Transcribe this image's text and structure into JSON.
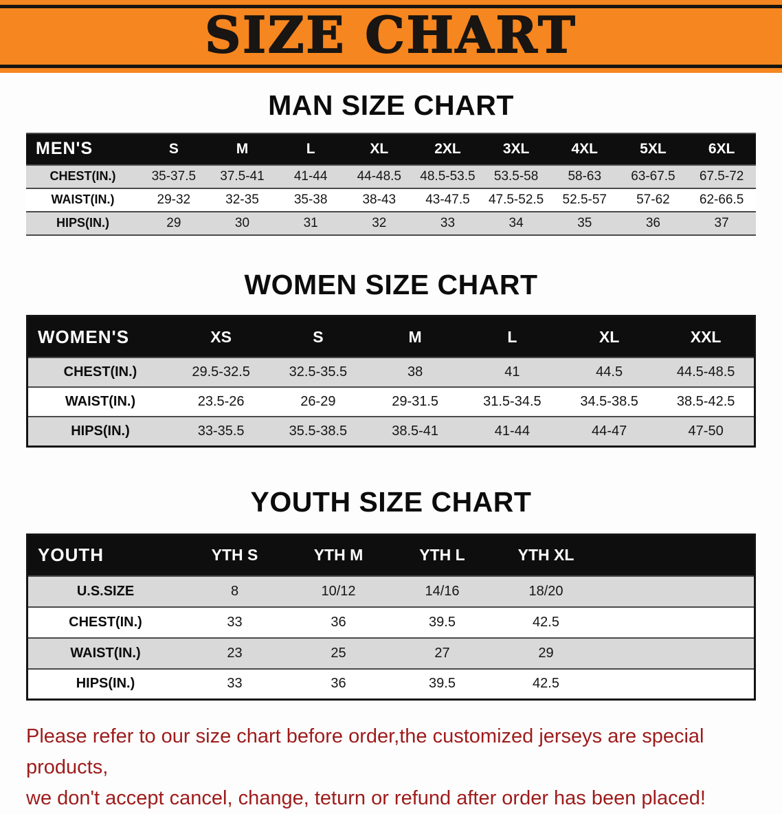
{
  "colors": {
    "banner_orange": "#f6861f",
    "header_black": "#0e0e0e",
    "stripe_gray": "#d9d9d9",
    "notice_red": "#9e1b1b"
  },
  "banner": {
    "title": "SIZE CHART"
  },
  "men": {
    "heading": "MAN SIZE CHART",
    "table": {
      "corner": "MEN'S",
      "columns": [
        "S",
        "M",
        "L",
        "XL",
        "2XL",
        "3XL",
        "4XL",
        "5XL",
        "6XL"
      ],
      "rows": [
        {
          "label": "CHEST(IN.)",
          "values": [
            "35-37.5",
            "37.5-41",
            "41-44",
            "44-48.5",
            "48.5-53.5",
            "53.5-58",
            "58-63",
            "63-67.5",
            "67.5-72"
          ]
        },
        {
          "label": "WAIST(IN.)",
          "values": [
            "29-32",
            "32-35",
            "35-38",
            "38-43",
            "43-47.5",
            "47.5-52.5",
            "52.5-57",
            "57-62",
            "62-66.5"
          ]
        },
        {
          "label": "HIPS(IN.)",
          "values": [
            "29",
            "30",
            "31",
            "32",
            "33",
            "34",
            "35",
            "36",
            "37"
          ]
        }
      ]
    }
  },
  "women": {
    "heading": "WOMEN SIZE CHART",
    "table": {
      "corner": "WOMEN'S",
      "columns": [
        "XS",
        "S",
        "M",
        "L",
        "XL",
        "XXL"
      ],
      "rows": [
        {
          "label": "CHEST(IN.)",
          "values": [
            "29.5-32.5",
            "32.5-35.5",
            "38",
            "41",
            "44.5",
            "44.5-48.5"
          ]
        },
        {
          "label": "WAIST(IN.)",
          "values": [
            "23.5-26",
            "26-29",
            "29-31.5",
            "31.5-34.5",
            "34.5-38.5",
            "38.5-42.5"
          ]
        },
        {
          "label": "HIPS(IN.)",
          "values": [
            "33-35.5",
            "35.5-38.5",
            "38.5-41",
            "41-44",
            "44-47",
            "47-50"
          ]
        }
      ]
    }
  },
  "youth": {
    "heading": "YOUTH SIZE CHART",
    "table": {
      "corner": "YOUTH",
      "columns": [
        "YTH S",
        "YTH M",
        "YTH L",
        "YTH XL"
      ],
      "spacer": true,
      "rows": [
        {
          "label": "U.S.SIZE",
          "values": [
            "8",
            "10/12",
            "14/16",
            "18/20"
          ]
        },
        {
          "label": "CHEST(IN.)",
          "values": [
            "33",
            "36",
            "39.5",
            "42.5"
          ]
        },
        {
          "label": "WAIST(IN.)",
          "values": [
            "23",
            "25",
            "27",
            "29"
          ]
        },
        {
          "label": "HIPS(IN.)",
          "values": [
            "33",
            "36",
            "39.5",
            "42.5"
          ]
        }
      ]
    }
  },
  "footer": {
    "line1": "Please refer to our size chart before order,the customized jerseys are special products,",
    "line2": "we don't accept cancel, change, teturn or refund after order has been placed!"
  }
}
